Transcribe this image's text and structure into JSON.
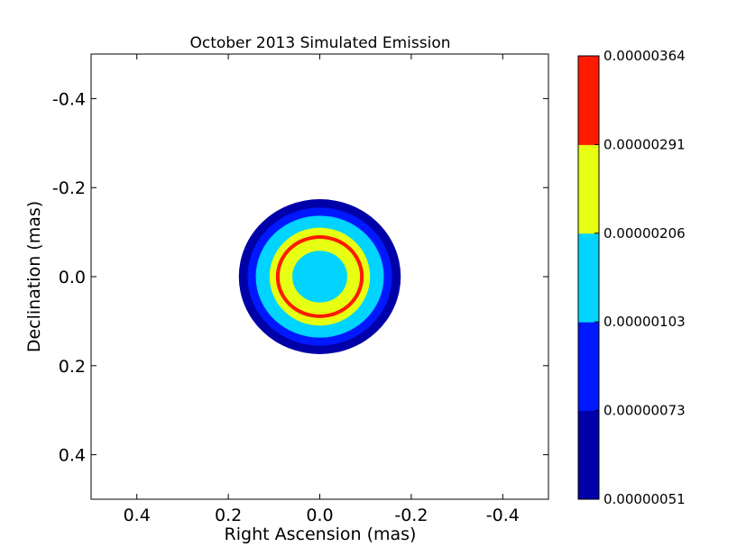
{
  "chart_data": {
    "type": "contour",
    "title": "October 2013 Simulated Emission",
    "xlabel": "Right Ascension (mas)",
    "ylabel": "Declination (mas)",
    "x_axis": {
      "range": [
        0.5,
        -0.5
      ],
      "ticks": [
        0.4,
        0.2,
        0.0,
        -0.2,
        -0.4
      ],
      "tick_labels": [
        "0.4",
        "0.2",
        "0.0",
        "-0.2",
        "-0.4"
      ]
    },
    "y_axis": {
      "range": [
        -0.5,
        0.5
      ],
      "ticks": [
        -0.4,
        -0.2,
        0.0,
        0.2,
        0.4
      ],
      "tick_labels": [
        "-0.4",
        "-0.2",
        "0.0",
        "0.2",
        "0.4"
      ]
    },
    "colorbar": {
      "levels": [
        5.1e-07,
        7.3e-07,
        1.03e-06,
        2.06e-06,
        2.91e-06,
        3.64e-06
      ],
      "tick_labels": [
        "0.00000051",
        "0.00000073",
        "0.00000103",
        "0.00000206",
        "0.00000291",
        "0.00000364"
      ],
      "colors": [
        "#0000a8",
        "#0018ff",
        "#00d4ff",
        "#e6ff12",
        "#ff1a00"
      ]
    },
    "contour_rings": [
      {
        "level_index": 0,
        "rx": 0.177,
        "ry": 0.174,
        "color": "#0000a8"
      },
      {
        "level_index": 1,
        "rx": 0.158,
        "ry": 0.155,
        "color": "#0018ff"
      },
      {
        "level_index": 2,
        "rx": 0.14,
        "ry": 0.137,
        "color": "#00d4ff"
      },
      {
        "level_index": 3,
        "rx": 0.11,
        "ry": 0.11,
        "color": "#e6ff12"
      },
      {
        "level_index": 4,
        "rx": 0.096,
        "ry": 0.093,
        "color": "#ff1a00"
      },
      {
        "level_index": 3,
        "rx": 0.088,
        "ry": 0.085,
        "color": "#e6ff12"
      },
      {
        "level_index": 2,
        "rx": 0.06,
        "ry": 0.058,
        "color": "#00d4ff"
      }
    ],
    "center": {
      "x": 0.0,
      "y": 0.0
    },
    "grid": false
  }
}
